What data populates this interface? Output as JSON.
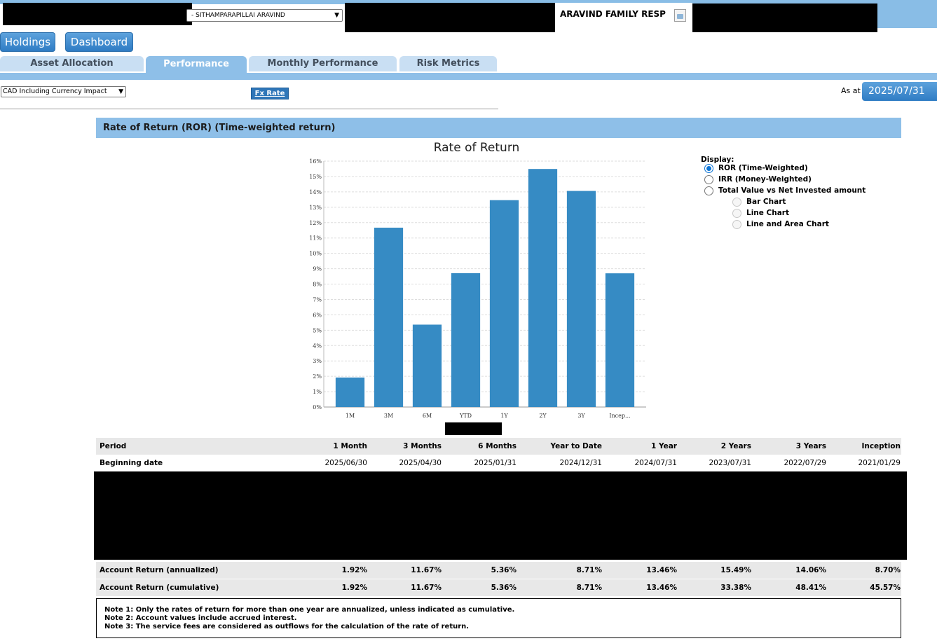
{
  "header": {
    "client_select_value": "- SITHAMPARAPILLAI ARAVIND",
    "account_name": "ARAVIND FAMILY RESP"
  },
  "nav": {
    "holdings_label": "Holdings",
    "dashboard_label": "Dashboard"
  },
  "tabs": [
    {
      "label": "Asset Allocation"
    },
    {
      "label": "Performance",
      "active": true
    },
    {
      "label": "Monthly Performance"
    },
    {
      "label": "Risk Metrics"
    }
  ],
  "controls": {
    "currency_select_value": "CAD Including Currency Impact",
    "fx_rate_label": "Fx Rate",
    "as_at_label": "As at",
    "as_at_date": "2025/07/31"
  },
  "section": {
    "title": "Rate of Return (ROR) (Time-weighted return)"
  },
  "display_options": {
    "label": "Display:",
    "ror": "ROR (Time-Weighted)",
    "irr": "IRR (Money-Weighted)",
    "total_value": "Total Value vs Net Invested amount",
    "bar_chart": "Bar Chart",
    "line_chart": "Line Chart",
    "line_area_chart": "Line and Area Chart",
    "selected": "ror"
  },
  "chart_data": {
    "type": "bar",
    "title": "Rate of Return",
    "categories": [
      "1M",
      "3M",
      "6M",
      "YTD",
      "1Y",
      "2Y",
      "3Y",
      "Incep..."
    ],
    "values": [
      1.92,
      11.67,
      5.36,
      8.71,
      13.46,
      15.49,
      14.06,
      8.7
    ],
    "ylim": [
      0,
      16
    ],
    "yticks": [
      "0%",
      "1%",
      "2%",
      "3%",
      "4%",
      "5%",
      "6%",
      "7%",
      "8%",
      "9%",
      "10%",
      "11%",
      "12%",
      "13%",
      "14%",
      "15%",
      "16%"
    ],
    "grid": true,
    "bar_color": "#368bc4"
  },
  "table": {
    "headers": [
      "Period",
      "1 Month",
      "3 Months",
      "6 Months",
      "Year to Date",
      "1 Year",
      "2 Years",
      "3 Years",
      "Inception"
    ],
    "beginning_date": [
      "Beginning date",
      "2025/06/30",
      "2025/04/30",
      "2025/01/31",
      "2024/12/31",
      "2024/07/31",
      "2023/07/31",
      "2022/07/29",
      "2021/01/29"
    ],
    "annualized": [
      "Account Return (annualized)",
      "1.92%",
      "11.67%",
      "5.36%",
      "8.71%",
      "13.46%",
      "15.49%",
      "14.06%",
      "8.70%"
    ],
    "cumulative": [
      "Account Return (cumulative)",
      "1.92%",
      "11.67%",
      "5.36%",
      "8.71%",
      "13.46%",
      "33.38%",
      "48.41%",
      "45.57%"
    ]
  },
  "notes": [
    "Note 1: Only the rates of return for more than one year are annualized, unless indicated as cumulative.",
    "Note 2: Account values include accrued interest.",
    "Note 3: The service fees are considered as outflows for the calculation of the rate of return."
  ]
}
